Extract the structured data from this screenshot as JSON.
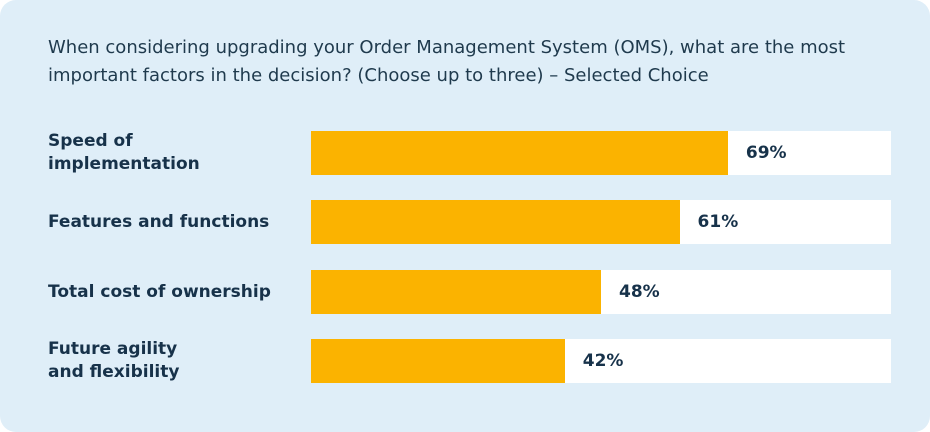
{
  "chart_data": {
    "type": "bar",
    "orientation": "horizontal",
    "title": "When considering upgrading your Order Management System (OMS), what are the most important factors in the decision? (Choose up to three) – Selected Choice",
    "categories": [
      "Speed of\nimplementation",
      "Features and functions",
      "Total cost of ownership",
      "Future agility\nand flexibility"
    ],
    "values": [
      69,
      61,
      48,
      42
    ],
    "value_labels": [
      "69%",
      "61%",
      "48%",
      "42%"
    ],
    "color": "#fbb300",
    "xlim": [
      0,
      96
    ]
  }
}
